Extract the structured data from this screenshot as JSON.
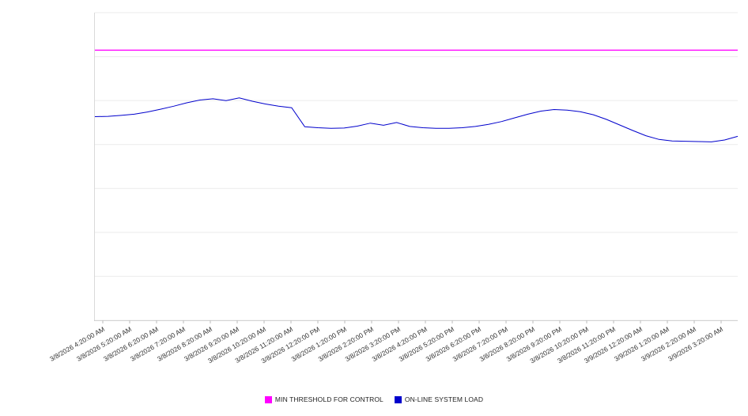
{
  "chart_data": {
    "type": "line",
    "title": "",
    "xlabel": "",
    "ylabel": "",
    "ylim": [
      0,
      100
    ],
    "grid_divisions": 7,
    "grid_color": "#ebebeb",
    "axis_color": "#bdbdbd",
    "legend_position": "bottom",
    "x_labels": [
      "3/8/2026 4:20:00 AM",
      "3/8/2026 5:20:00 AM",
      "3/8/2026 6:20:00 AM",
      "3/8/2026 7:20:00 AM",
      "3/8/2026 8:20:00 AM",
      "3/8/2026 9:20:00 AM",
      "3/8/2026 10:20:00 AM",
      "3/8/2026 11:20:00 AM",
      "3/8/2026 12:20:00 PM",
      "3/8/2026 1:20:00 PM",
      "3/8/2026 2:20:00 PM",
      "3/8/2026 3:20:00 PM",
      "3/8/2026 4:20:00 PM",
      "3/8/2026 5:20:00 PM",
      "3/8/2026 6:20:00 PM",
      "3/8/2026 7:20:00 PM",
      "3/8/2026 8:20:00 PM",
      "3/8/2026 9:20:00 PM",
      "3/8/2026 10:20:00 PM",
      "3/8/2026 11:20:00 PM",
      "3/9/2026 12:20:00 AM",
      "3/9/2026 1:20:00 AM",
      "3/9/2026 2:20:00 AM",
      "3/9/2026 3:20:00 AM"
    ],
    "tick_first_offset": 10,
    "tick_spacing": 34,
    "series": [
      {
        "name": "MIN THRESHOLD FOR CONTROL",
        "color": "#ff00ff",
        "style": "constant",
        "value": 87.8
      },
      {
        "name": "ON-LINE SYSTEM LOAD",
        "color": "#0000cc",
        "style": "line",
        "values": [
          66.2,
          66.3,
          66.6,
          67.0,
          67.7,
          68.6,
          69.6,
          70.7,
          71.6,
          72.0,
          71.4,
          72.3,
          71.2,
          70.3,
          69.6,
          69.1,
          62.9,
          62.6,
          62.4,
          62.5,
          63.1,
          64.1,
          63.4,
          64.3,
          63.0,
          62.6,
          62.4,
          62.4,
          62.6,
          63.0,
          63.7,
          64.6,
          65.8,
          67.0,
          68.0,
          68.5,
          68.3,
          67.8,
          66.8,
          65.3,
          63.5,
          61.7,
          60.0,
          58.8,
          58.3,
          58.2,
          58.1,
          58.0,
          58.6,
          59.8
        ]
      }
    ]
  }
}
